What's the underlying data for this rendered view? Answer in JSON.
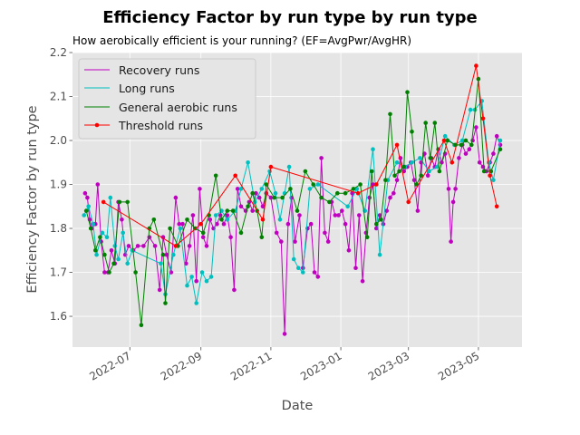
{
  "chart_data": {
    "type": "line",
    "title": "Efficiency Factor by run type by run type",
    "subtitle": "How aerobically efficient is your running? (EF=AvgPwr/AvgHR)",
    "xlabel": "Date",
    "ylabel": "Efficiency Factor by run type",
    "xlim": [
      "2022-05-12",
      "2023-06-08"
    ],
    "ylim": [
      1.53,
      2.2
    ],
    "x_ticks": [
      {
        "date": "2022-07-01",
        "label": "2022-07"
      },
      {
        "date": "2022-09-01",
        "label": "2022-09"
      },
      {
        "date": "2022-11-01",
        "label": "2022-11"
      },
      {
        "date": "2023-01-01",
        "label": "2023-01"
      },
      {
        "date": "2023-03-01",
        "label": "2023-03"
      },
      {
        "date": "2023-05-01",
        "label": "2023-05"
      }
    ],
    "y_ticks": [
      1.6,
      1.7,
      1.8,
      1.9,
      2.0,
      2.1,
      2.2
    ],
    "y_tick_labels": [
      "1.6",
      "1.7",
      "1.8",
      "1.9",
      "2.0",
      "2.1",
      "2.2"
    ],
    "grid": true,
    "style": "ggplot",
    "legend_position": "top-left",
    "series": [
      {
        "name": "Recovery runs",
        "color": "#bf00bf",
        "marker_size": 2.3,
        "points": [
          [
            "2022-05-23",
            1.88
          ],
          [
            "2022-05-25",
            1.87
          ],
          [
            "2022-05-27",
            1.82
          ],
          [
            "2022-05-29",
            1.8
          ],
          [
            "2022-06-01",
            1.81
          ],
          [
            "2022-06-03",
            1.9
          ],
          [
            "2022-06-06",
            1.77
          ],
          [
            "2022-06-09",
            1.7
          ],
          [
            "2022-06-12",
            1.7
          ],
          [
            "2022-06-15",
            1.75
          ],
          [
            "2022-06-18",
            1.72
          ],
          [
            "2022-06-21",
            1.86
          ],
          [
            "2022-06-24",
            1.82
          ],
          [
            "2022-06-27",
            1.74
          ],
          [
            "2022-06-30",
            1.76
          ],
          [
            "2022-07-04",
            1.75
          ],
          [
            "2022-07-08",
            1.76
          ],
          [
            "2022-07-13",
            1.76
          ],
          [
            "2022-07-18",
            1.78
          ],
          [
            "2022-07-23",
            1.76
          ],
          [
            "2022-07-27",
            1.66
          ],
          [
            "2022-07-30",
            1.78
          ],
          [
            "2022-08-02",
            1.74
          ],
          [
            "2022-08-06",
            1.7
          ],
          [
            "2022-08-10",
            1.87
          ],
          [
            "2022-08-13",
            1.81
          ],
          [
            "2022-08-16",
            1.81
          ],
          [
            "2022-08-19",
            1.72
          ],
          [
            "2022-08-22",
            1.76
          ],
          [
            "2022-08-25",
            1.83
          ],
          [
            "2022-08-28",
            1.68
          ],
          [
            "2022-08-31",
            1.89
          ],
          [
            "2022-09-03",
            1.78
          ],
          [
            "2022-09-06",
            1.76
          ],
          [
            "2022-09-09",
            1.82
          ],
          [
            "2022-09-12",
            1.8
          ],
          [
            "2022-09-15",
            1.81
          ],
          [
            "2022-09-18",
            1.83
          ],
          [
            "2022-09-21",
            1.81
          ],
          [
            "2022-09-24",
            1.83
          ],
          [
            "2022-09-27",
            1.78
          ],
          [
            "2022-09-30",
            1.66
          ],
          [
            "2022-10-03",
            1.89
          ],
          [
            "2022-10-06",
            1.85
          ],
          [
            "2022-10-10",
            1.84
          ],
          [
            "2022-10-13",
            1.86
          ],
          [
            "2022-10-16",
            1.84
          ],
          [
            "2022-10-19",
            1.88
          ],
          [
            "2022-10-22",
            1.87
          ],
          [
            "2022-10-25",
            1.85
          ],
          [
            "2022-10-28",
            1.88
          ],
          [
            "2022-11-01",
            1.87
          ],
          [
            "2022-11-06",
            1.79
          ],
          [
            "2022-11-10",
            1.77
          ],
          [
            "2022-11-13",
            1.56
          ],
          [
            "2022-11-16",
            1.81
          ],
          [
            "2022-11-19",
            1.87
          ],
          [
            "2022-11-22",
            1.77
          ],
          [
            "2022-11-26",
            1.83
          ],
          [
            "2022-11-29",
            1.71
          ],
          [
            "2022-12-03",
            1.8
          ],
          [
            "2022-12-06",
            1.81
          ],
          [
            "2022-12-09",
            1.7
          ],
          [
            "2022-12-12",
            1.69
          ],
          [
            "2022-12-15",
            1.96
          ],
          [
            "2022-12-18",
            1.79
          ],
          [
            "2022-12-21",
            1.77
          ],
          [
            "2022-12-24",
            1.86
          ],
          [
            "2022-12-27",
            1.83
          ],
          [
            "2022-12-30",
            1.83
          ],
          [
            "2023-01-02",
            1.84
          ],
          [
            "2023-01-05",
            1.81
          ],
          [
            "2023-01-08",
            1.75
          ],
          [
            "2023-01-11",
            1.88
          ],
          [
            "2023-01-14",
            1.71
          ],
          [
            "2023-01-17",
            1.83
          ],
          [
            "2023-01-20",
            1.68
          ],
          [
            "2023-01-23",
            1.79
          ],
          [
            "2023-01-26",
            1.87
          ],
          [
            "2023-01-29",
            1.9
          ],
          [
            "2023-02-01",
            1.8
          ],
          [
            "2023-02-04",
            1.83
          ],
          [
            "2023-02-07",
            1.81
          ],
          [
            "2023-02-10",
            1.84
          ],
          [
            "2023-02-13",
            1.87
          ],
          [
            "2023-02-16",
            1.88
          ],
          [
            "2023-02-19",
            1.91
          ],
          [
            "2023-02-22",
            1.96
          ],
          [
            "2023-02-25",
            1.93
          ],
          [
            "2023-02-28",
            1.94
          ],
          [
            "2023-03-03",
            1.95
          ],
          [
            "2023-03-06",
            1.91
          ],
          [
            "2023-03-09",
            1.84
          ],
          [
            "2023-03-12",
            1.95
          ],
          [
            "2023-03-15",
            1.97
          ],
          [
            "2023-03-18",
            1.92
          ],
          [
            "2023-03-21",
            1.96
          ],
          [
            "2023-03-24",
            1.94
          ],
          [
            "2023-03-27",
            1.98
          ],
          [
            "2023-03-30",
            1.95
          ],
          [
            "2023-04-02",
            1.97
          ],
          [
            "2023-04-05",
            1.89
          ],
          [
            "2023-04-07",
            1.77
          ],
          [
            "2023-04-09",
            1.86
          ],
          [
            "2023-04-11",
            1.89
          ],
          [
            "2023-04-14",
            1.96
          ],
          [
            "2023-04-17",
            1.99
          ],
          [
            "2023-04-20",
            1.97
          ],
          [
            "2023-04-23",
            1.98
          ],
          [
            "2023-04-26",
            2.0
          ],
          [
            "2023-04-29",
            2.03
          ],
          [
            "2023-05-02",
            1.95
          ],
          [
            "2023-05-05",
            1.94
          ],
          [
            "2023-05-08",
            1.93
          ],
          [
            "2023-05-11",
            1.95
          ],
          [
            "2023-05-14",
            1.97
          ],
          [
            "2023-05-17",
            2.01
          ],
          [
            "2023-05-20",
            1.99
          ]
        ]
      },
      {
        "name": "Long runs",
        "color": "#00bfbf",
        "marker_size": 2.3,
        "points": [
          [
            "2022-05-22",
            1.83
          ],
          [
            "2022-05-26",
            1.85
          ],
          [
            "2022-05-30",
            1.81
          ],
          [
            "2022-06-02",
            1.74
          ],
          [
            "2022-06-07",
            1.79
          ],
          [
            "2022-06-11",
            1.78
          ],
          [
            "2022-06-14",
            1.87
          ],
          [
            "2022-06-18",
            1.76
          ],
          [
            "2022-06-21",
            1.73
          ],
          [
            "2022-06-25",
            1.79
          ],
          [
            "2022-06-29",
            1.72
          ],
          [
            "2022-07-03",
            1.75
          ],
          [
            "2022-07-28",
            1.72
          ],
          [
            "2022-08-01",
            1.65
          ],
          [
            "2022-08-08",
            1.74
          ],
          [
            "2022-08-14",
            1.8
          ],
          [
            "2022-08-20",
            1.67
          ],
          [
            "2022-08-24",
            1.69
          ],
          [
            "2022-08-28",
            1.63
          ],
          [
            "2022-09-02",
            1.7
          ],
          [
            "2022-09-06",
            1.68
          ],
          [
            "2022-09-10",
            1.69
          ],
          [
            "2022-09-14",
            1.83
          ],
          [
            "2022-09-19",
            1.84
          ],
          [
            "2022-09-24",
            1.82
          ],
          [
            "2022-10-01",
            1.84
          ],
          [
            "2022-10-06",
            1.89
          ],
          [
            "2022-10-12",
            1.95
          ],
          [
            "2022-10-18",
            1.86
          ],
          [
            "2022-10-24",
            1.89
          ],
          [
            "2022-10-31",
            1.93
          ],
          [
            "2022-11-05",
            1.88
          ],
          [
            "2022-11-09",
            1.82
          ],
          [
            "2022-11-13",
            1.88
          ],
          [
            "2022-11-17",
            1.94
          ],
          [
            "2022-11-21",
            1.73
          ],
          [
            "2022-11-25",
            1.71
          ],
          [
            "2022-11-29",
            1.7
          ],
          [
            "2022-12-05",
            1.89
          ],
          [
            "2022-12-12",
            1.9
          ],
          [
            "2023-01-07",
            1.85
          ],
          [
            "2023-01-15",
            1.89
          ],
          [
            "2023-01-22",
            1.84
          ],
          [
            "2023-01-29",
            1.98
          ],
          [
            "2023-02-04",
            1.74
          ],
          [
            "2023-02-11",
            1.91
          ],
          [
            "2023-02-19",
            1.95
          ],
          [
            "2023-02-26",
            1.94
          ],
          [
            "2023-03-04",
            1.95
          ],
          [
            "2023-03-11",
            1.96
          ],
          [
            "2023-03-19",
            1.93
          ],
          [
            "2023-03-26",
            1.94
          ],
          [
            "2023-04-02",
            2.01
          ],
          [
            "2023-04-10",
            1.99
          ],
          [
            "2023-04-17",
            2.0
          ],
          [
            "2023-04-24",
            2.07
          ],
          [
            "2023-04-28",
            2.07
          ],
          [
            "2023-05-04",
            2.09
          ],
          [
            "2023-05-10",
            1.95
          ],
          [
            "2023-05-14",
            1.91
          ],
          [
            "2023-05-20",
            2.0
          ]
        ]
      },
      {
        "name": "General aerobic runs",
        "color": "#008000",
        "marker_size": 2.3,
        "points": [
          [
            "2022-05-24",
            1.84
          ],
          [
            "2022-05-28",
            1.8
          ],
          [
            "2022-06-01",
            1.75
          ],
          [
            "2022-06-05",
            1.78
          ],
          [
            "2022-06-09",
            1.74
          ],
          [
            "2022-06-13",
            1.7
          ],
          [
            "2022-06-17",
            1.72
          ],
          [
            "2022-06-22",
            1.86
          ],
          [
            "2022-06-29",
            1.86
          ],
          [
            "2022-07-06",
            1.7
          ],
          [
            "2022-07-11",
            1.58
          ],
          [
            "2022-07-18",
            1.8
          ],
          [
            "2022-07-22",
            1.82
          ],
          [
            "2022-07-30",
            1.74
          ],
          [
            "2022-08-01",
            1.63
          ],
          [
            "2022-08-05",
            1.8
          ],
          [
            "2022-08-12",
            1.76
          ],
          [
            "2022-08-20",
            1.82
          ],
          [
            "2022-08-27",
            1.8
          ],
          [
            "2022-09-03",
            1.79
          ],
          [
            "2022-09-08",
            1.83
          ],
          [
            "2022-09-14",
            1.92
          ],
          [
            "2022-09-19",
            1.82
          ],
          [
            "2022-09-24",
            1.84
          ],
          [
            "2022-09-29",
            1.84
          ],
          [
            "2022-10-06",
            1.79
          ],
          [
            "2022-10-12",
            1.85
          ],
          [
            "2022-10-16",
            1.88
          ],
          [
            "2022-10-20",
            1.84
          ],
          [
            "2022-10-24",
            1.78
          ],
          [
            "2022-10-28",
            1.9
          ],
          [
            "2022-11-04",
            1.87
          ],
          [
            "2022-11-11",
            1.87
          ],
          [
            "2022-11-18",
            1.89
          ],
          [
            "2022-11-24",
            1.84
          ],
          [
            "2022-12-01",
            1.93
          ],
          [
            "2022-12-08",
            1.9
          ],
          [
            "2022-12-15",
            1.87
          ],
          [
            "2022-12-22",
            1.86
          ],
          [
            "2022-12-29",
            1.88
          ],
          [
            "2023-01-05",
            1.88
          ],
          [
            "2023-01-12",
            1.89
          ],
          [
            "2023-01-18",
            1.9
          ],
          [
            "2023-01-24",
            1.78
          ],
          [
            "2023-01-28",
            1.93
          ],
          [
            "2023-02-01",
            1.81
          ],
          [
            "2023-02-05",
            1.82
          ],
          [
            "2023-02-09",
            1.91
          ],
          [
            "2023-02-13",
            2.06
          ],
          [
            "2023-02-17",
            1.92
          ],
          [
            "2023-02-21",
            1.93
          ],
          [
            "2023-02-25",
            1.94
          ],
          [
            "2023-02-28",
            2.11
          ],
          [
            "2023-03-04",
            2.02
          ],
          [
            "2023-03-08",
            1.9
          ],
          [
            "2023-03-12",
            1.92
          ],
          [
            "2023-03-16",
            2.04
          ],
          [
            "2023-03-20",
            1.96
          ],
          [
            "2023-03-24",
            2.04
          ],
          [
            "2023-03-28",
            1.93
          ],
          [
            "2023-04-04",
            2.0
          ],
          [
            "2023-04-11",
            1.99
          ],
          [
            "2023-04-16",
            1.99
          ],
          [
            "2023-04-20",
            2.0
          ],
          [
            "2023-04-25",
            1.99
          ],
          [
            "2023-05-01",
            2.14
          ],
          [
            "2023-05-06",
            1.93
          ],
          [
            "2023-05-12",
            1.93
          ],
          [
            "2023-05-20",
            1.98
          ]
        ]
      },
      {
        "name": "Threshold runs",
        "color": "#ff0000",
        "marker_size": 2.3,
        "points": [
          [
            "2022-06-08",
            1.86
          ],
          [
            "2022-08-10",
            1.76
          ],
          [
            "2022-09-01",
            1.81
          ],
          [
            "2022-10-01",
            1.92
          ],
          [
            "2022-10-25",
            1.82
          ],
          [
            "2022-11-01",
            1.94
          ],
          [
            "2023-01-16",
            1.88
          ],
          [
            "2023-02-01",
            1.9
          ],
          [
            "2023-02-19",
            1.99
          ],
          [
            "2023-03-01",
            1.86
          ],
          [
            "2023-04-01",
            2.0
          ],
          [
            "2023-04-08",
            1.95
          ],
          [
            "2023-04-29",
            2.17
          ],
          [
            "2023-05-05",
            2.05
          ],
          [
            "2023-05-11",
            1.92
          ],
          [
            "2023-05-17",
            1.85
          ]
        ]
      }
    ]
  }
}
